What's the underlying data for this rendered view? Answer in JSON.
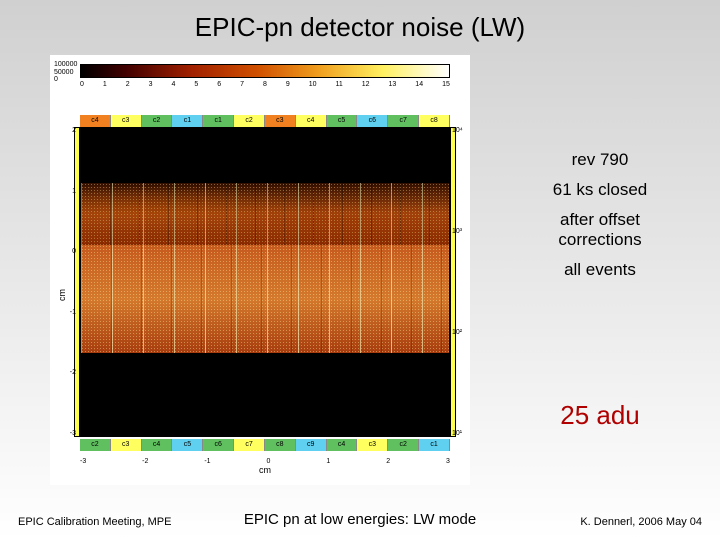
{
  "title": "EPIC-pn detector noise  (LW)",
  "colorbar": {
    "y_labels": [
      "100000",
      "50000",
      "0"
    ],
    "ticks": [
      "0",
      "1",
      "2",
      "3",
      "4",
      "5",
      "6",
      "7",
      "8",
      "9",
      "10",
      "11",
      "12",
      "13",
      "14",
      "15"
    ]
  },
  "ccd_top": [
    "c4",
    "c3",
    "c2",
    "c1",
    "c1",
    "c2",
    "c3",
    "c4",
    "c5",
    "c6",
    "c7",
    "c8"
  ],
  "ccd_bottom": [
    "c2",
    "c3",
    "c4",
    "c5",
    "c6",
    "c7",
    "c8",
    "c9",
    "c4",
    "c3",
    "c2",
    "c1"
  ],
  "y_left_label": "cm",
  "y_left_ticks": [
    "2",
    "1",
    "0",
    "-1",
    "-2",
    "-3"
  ],
  "y_right_ticks": [
    "10⁴",
    "10³",
    "10²",
    "10¹"
  ],
  "x_bottom_ticks": [
    "-3",
    "-2",
    "-1",
    "0",
    "1",
    "2",
    "3"
  ],
  "x_bottom_label": "cm",
  "annotations": {
    "line1": "rev 790",
    "line2": "61 ks closed",
    "line3": "after offset",
    "line4": "corrections",
    "line5": "all events"
  },
  "big_annotation": "25 adu",
  "footer": {
    "left": "EPIC Calibration Meeting, MPE",
    "center": "EPIC pn at low energies: LW mode",
    "right": "K. Dennerl, 2006 May 04"
  },
  "colors": {
    "anno_red": "#b00000",
    "page_bg_top": "#d0d0d0",
    "page_bg_bottom": "#ffffff"
  }
}
